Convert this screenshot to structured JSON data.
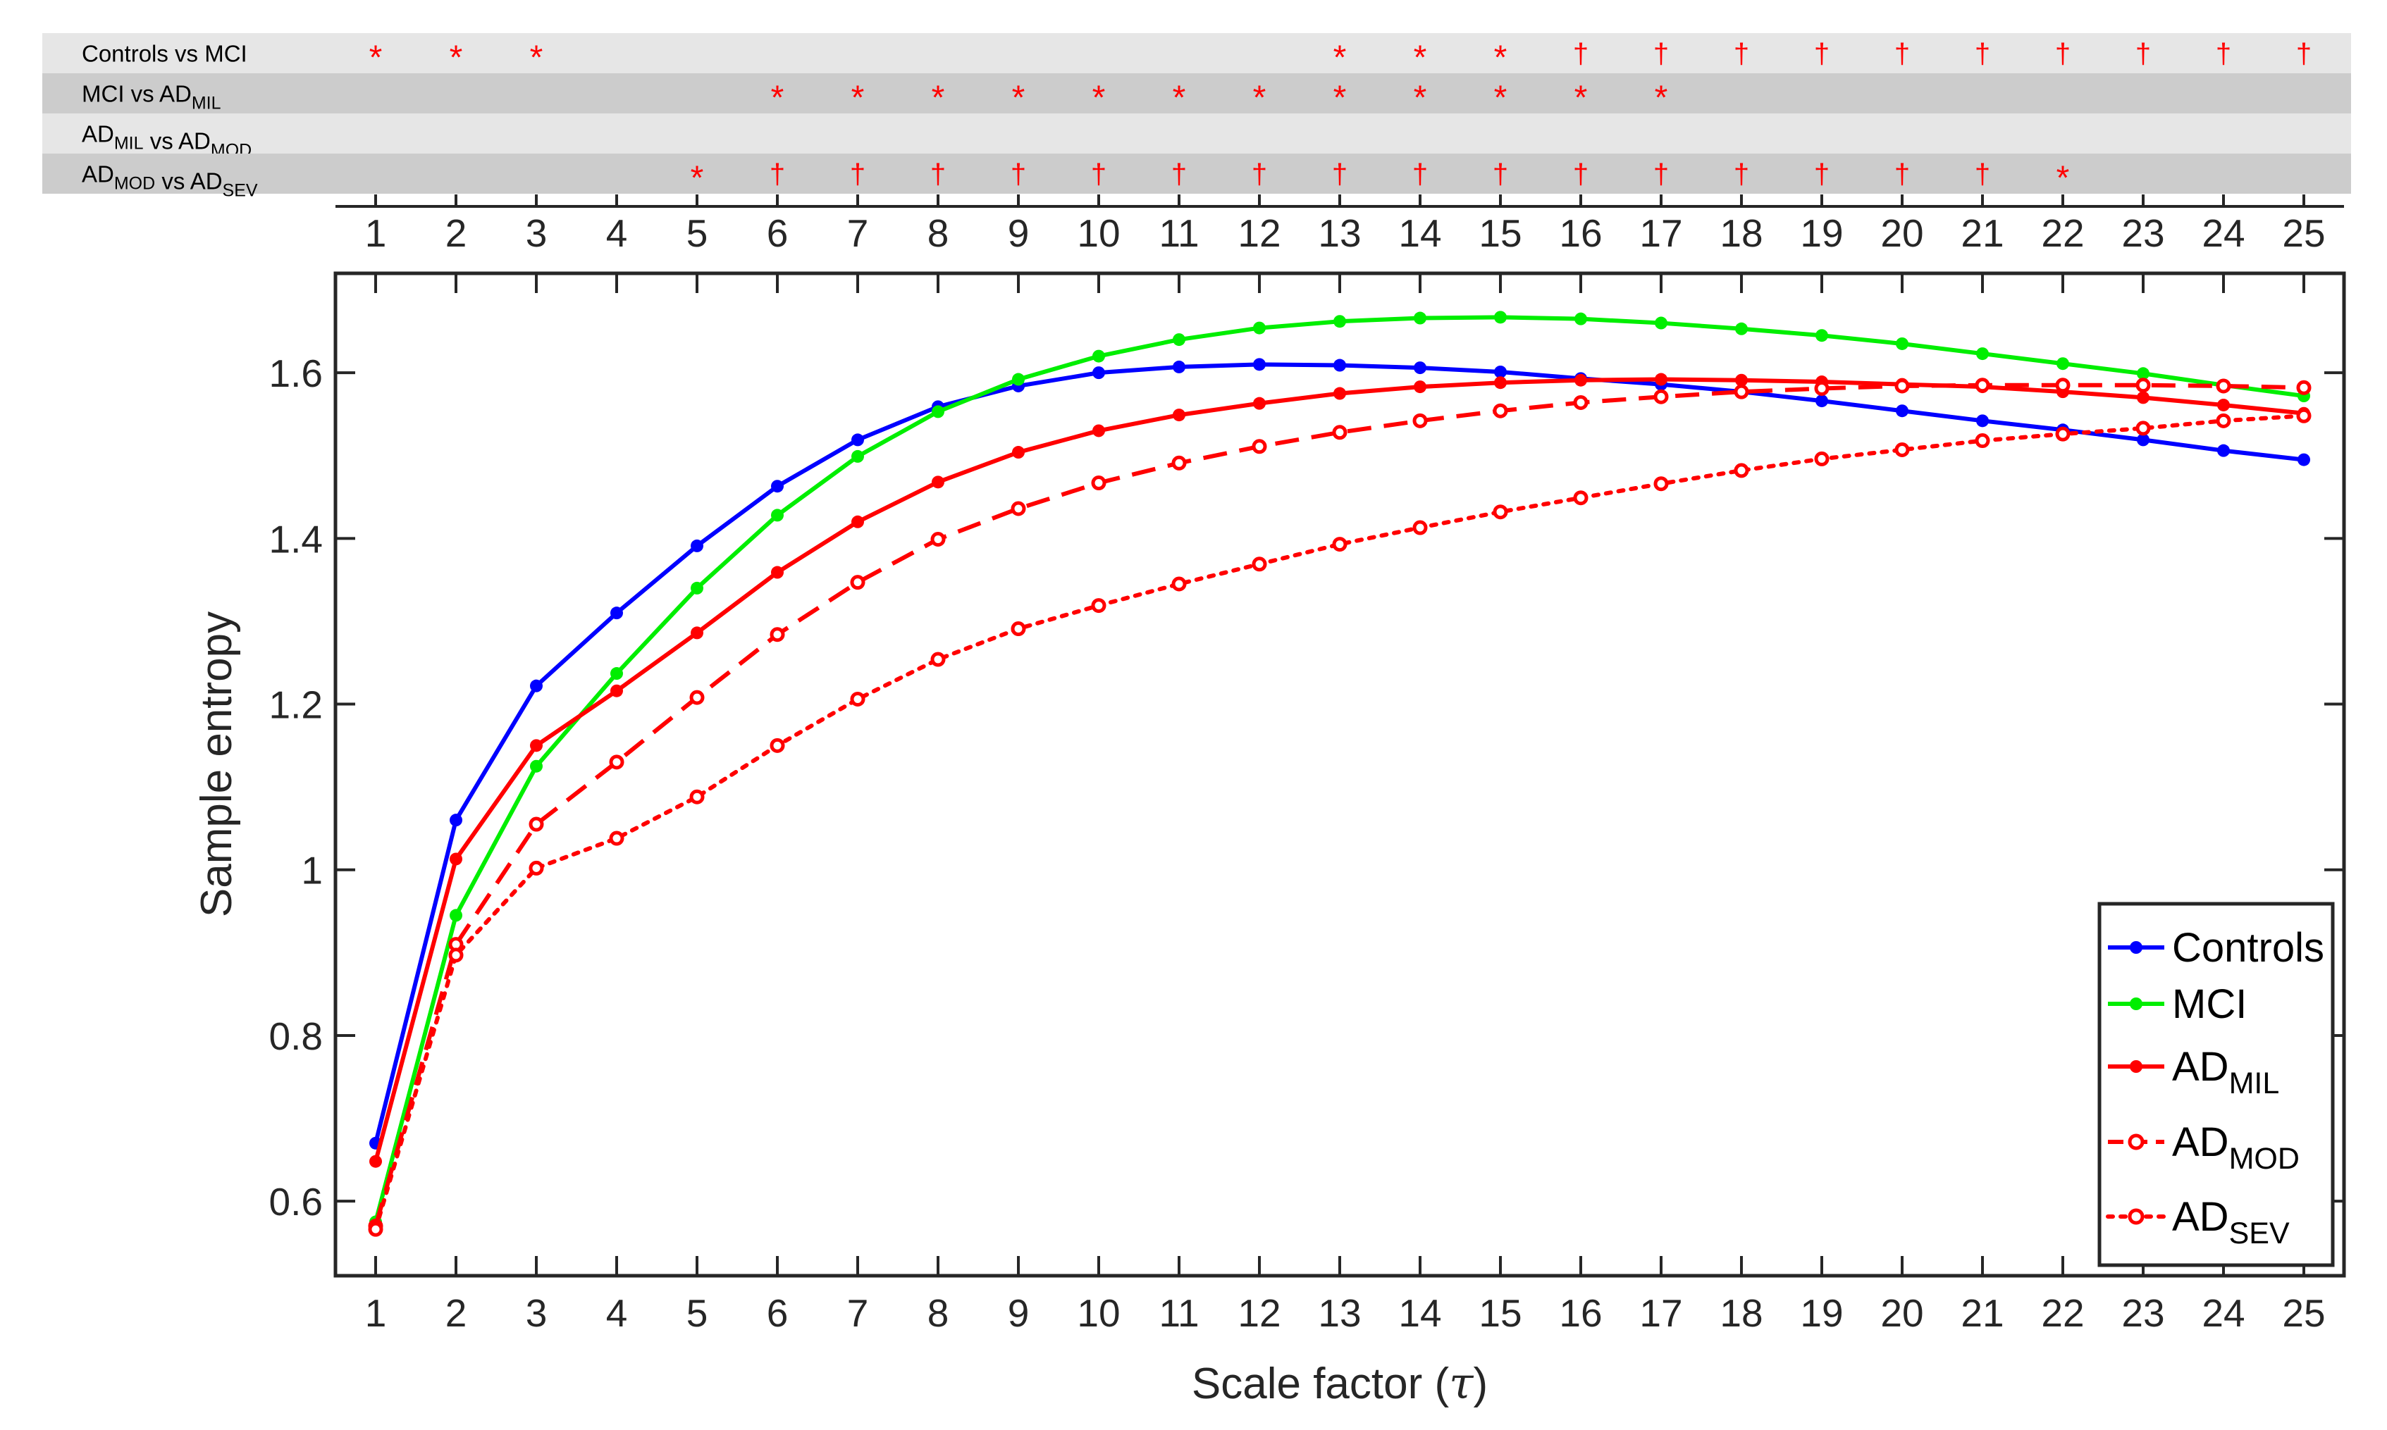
{
  "chart_data": {
    "type": "line",
    "xlabel": "Scale factor",
    "xlabel_symbol": "τ",
    "ylabel": "Sample entropy",
    "x": [
      1,
      2,
      3,
      4,
      5,
      6,
      7,
      8,
      9,
      10,
      11,
      12,
      13,
      14,
      15,
      16,
      17,
      18,
      19,
      20,
      21,
      22,
      23,
      24,
      25
    ],
    "xlim": [
      0.5,
      25.5
    ],
    "ylim": [
      0.51,
      1.72
    ],
    "yticks": [
      0.6,
      0.8,
      1,
      1.2,
      1.4,
      1.6
    ],
    "ytick_labels": [
      "0.6",
      "0.8",
      "1",
      "1.2",
      "1.4",
      "1.6"
    ],
    "series": [
      {
        "name": "Controls",
        "name_sub": "",
        "color": "#0000ff",
        "dash": "solid",
        "marker": "filled",
        "values": [
          0.67,
          1.06,
          1.222,
          1.31,
          1.391,
          1.463,
          1.519,
          1.559,
          1.584,
          1.6,
          1.607,
          1.61,
          1.609,
          1.606,
          1.601,
          1.593,
          1.586,
          1.577,
          1.566,
          1.554,
          1.542,
          1.531,
          1.519,
          1.506,
          1.495
        ]
      },
      {
        "name": "MCI",
        "name_sub": "",
        "color": "#00ee00",
        "dash": "solid",
        "marker": "filled",
        "values": [
          0.575,
          0.945,
          1.125,
          1.237,
          1.34,
          1.428,
          1.499,
          1.553,
          1.592,
          1.62,
          1.64,
          1.654,
          1.662,
          1.666,
          1.667,
          1.665,
          1.66,
          1.653,
          1.645,
          1.635,
          1.623,
          1.611,
          1.599,
          1.585,
          1.572
        ]
      },
      {
        "name": "AD",
        "name_sub": "MIL",
        "color": "#ff0000",
        "dash": "solid",
        "marker": "filled",
        "values": [
          0.648,
          1.013,
          1.15,
          1.216,
          1.286,
          1.359,
          1.42,
          1.468,
          1.504,
          1.53,
          1.549,
          1.563,
          1.575,
          1.583,
          1.588,
          1.591,
          1.592,
          1.591,
          1.589,
          1.586,
          1.583,
          1.577,
          1.57,
          1.561,
          1.551
        ]
      },
      {
        "name": "AD",
        "name_sub": "MOD",
        "color": "#ff0000",
        "dash": "dashed",
        "marker": "open",
        "values": [
          0.57,
          0.91,
          1.055,
          1.13,
          1.208,
          1.284,
          1.347,
          1.399,
          1.436,
          1.467,
          1.491,
          1.511,
          1.528,
          1.542,
          1.554,
          1.564,
          1.571,
          1.577,
          1.581,
          1.584,
          1.585,
          1.585,
          1.585,
          1.584,
          1.582
        ]
      },
      {
        "name": "AD",
        "name_sub": "SEV",
        "color": "#ff0000",
        "dash": "dotted",
        "marker": "open",
        "values": [
          0.566,
          0.897,
          1.002,
          1.038,
          1.088,
          1.15,
          1.206,
          1.254,
          1.291,
          1.319,
          1.345,
          1.369,
          1.393,
          1.413,
          1.432,
          1.449,
          1.466,
          1.482,
          1.496,
          1.507,
          1.518,
          1.526,
          1.533,
          1.542,
          1.548
        ]
      }
    ],
    "legend_position": "bottom-right",
    "significance": {
      "rows": [
        {
          "label_parts": [
            {
              "t": "Controls vs MCI",
              "sub": ""
            }
          ],
          "marks": [
            "*",
            "*",
            "*",
            "",
            "",
            "",
            "",
            "",
            "",
            "",
            "",
            "",
            "*",
            "*",
            "*",
            "†",
            "†",
            "†",
            "†",
            "†",
            "†",
            "†",
            "†",
            "†",
            "†"
          ]
        },
        {
          "label_parts": [
            {
              "t": "MCI vs AD",
              "sub": "MIL"
            }
          ],
          "marks": [
            "",
            "",
            "",
            "",
            "",
            "*",
            "*",
            "*",
            "*",
            "*",
            "*",
            "*",
            "*",
            "*",
            "*",
            "*",
            "*",
            "",
            "",
            "",
            "",
            "",
            "",
            "",
            ""
          ]
        },
        {
          "label_parts": [
            {
              "t": "AD",
              "sub": "MIL"
            },
            {
              "t": " vs AD",
              "sub": "MOD"
            }
          ],
          "marks": [
            "",
            "",
            "",
            "",
            "",
            "",
            "",
            "",
            "",
            "",
            "",
            "",
            "",
            "",
            "",
            "",
            "",
            "",
            "",
            "",
            "",
            "",
            "",
            "",
            ""
          ]
        },
        {
          "label_parts": [
            {
              "t": "AD",
              "sub": "MOD"
            },
            {
              "t": " vs AD",
              "sub": "SEV"
            }
          ],
          "marks": [
            "",
            "",
            "",
            "",
            "*",
            "†",
            "†",
            "†",
            "†",
            "†",
            "†",
            "†",
            "†",
            "†",
            "†",
            "†",
            "†",
            "†",
            "†",
            "†",
            "†",
            "*",
            "",
            "",
            ""
          ]
        }
      ],
      "mark_color": "#ff0000",
      "row_colors": [
        "#e6e6e6",
        "#cccccc"
      ]
    }
  }
}
